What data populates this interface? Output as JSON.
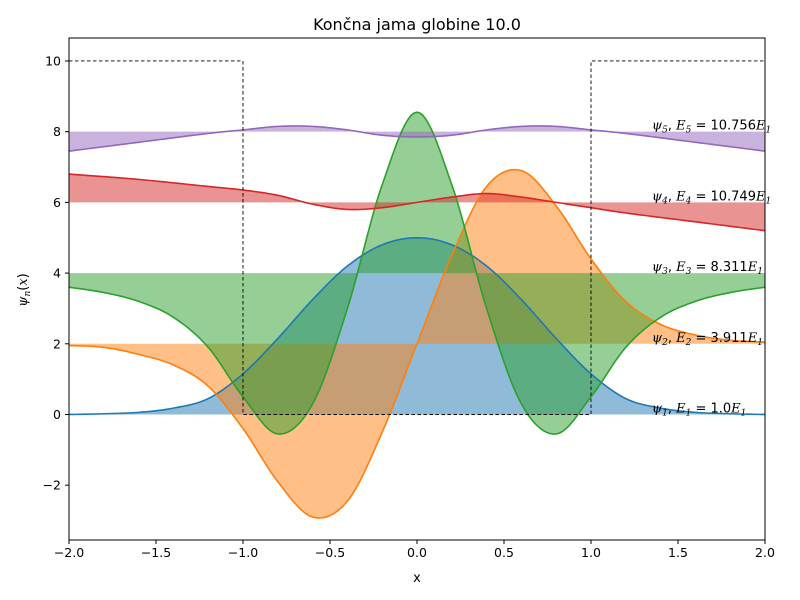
{
  "chart_data": {
    "type": "line",
    "title": "Končna jama globine 10.0",
    "xlabel": "x",
    "ylabel": "ψ_n(x)",
    "xlim": [
      -2.0,
      2.0
    ],
    "ylim": [
      -3.55,
      10.65
    ],
    "xticks": [
      -2.0,
      -1.5,
      -1.0,
      -0.5,
      0.0,
      0.5,
      1.0,
      1.5,
      2.0
    ],
    "xtick_labels": [
      "−2.0",
      "−1.5",
      "−1.0",
      "−0.5",
      "0.0",
      "0.5",
      "1.0",
      "1.5",
      "2.0"
    ],
    "yticks": [
      -2,
      0,
      2,
      4,
      6,
      8,
      10
    ],
    "ytick_labels": [
      "−2",
      "0",
      "2",
      "4",
      "6",
      "8",
      "10"
    ],
    "grid": false,
    "legend": "none",
    "well": {
      "depth": 10.0,
      "x_left": -1.0,
      "x_right": 1.0,
      "style": "dashed",
      "color": "#000000"
    },
    "series": [
      {
        "baseline": 0,
        "color": "#1f77b4",
        "annotation": {
          "psi": "ψ",
          "sub": "1",
          "mid": ", ",
          "E": "E",
          "esub": "1",
          "eq": " = 1.0",
          "E2": "E",
          "e2sub": "1"
        },
        "points": [
          [
            -2.0,
            0.0
          ],
          [
            -1.8,
            0.02
          ],
          [
            -1.6,
            0.06
          ],
          [
            -1.4,
            0.18
          ],
          [
            -1.2,
            0.45
          ],
          [
            -1.0,
            1.15
          ],
          [
            -0.8,
            2.15
          ],
          [
            -0.6,
            3.25
          ],
          [
            -0.4,
            4.2
          ],
          [
            -0.2,
            4.8
          ],
          [
            0.0,
            5.0
          ],
          [
            0.2,
            4.8
          ],
          [
            0.4,
            4.2
          ],
          [
            0.6,
            3.25
          ],
          [
            0.8,
            2.15
          ],
          [
            1.0,
            1.15
          ],
          [
            1.2,
            0.45
          ],
          [
            1.4,
            0.18
          ],
          [
            1.6,
            0.06
          ],
          [
            1.8,
            0.02
          ],
          [
            2.0,
            0.0
          ]
        ]
      },
      {
        "baseline": 2,
        "color": "#ff7f0e",
        "annotation": {
          "psi": "ψ",
          "sub": "2",
          "mid": ", ",
          "E": "E",
          "esub": "2",
          "eq": " = 3.911",
          "E2": "E",
          "e2sub": "1"
        },
        "points": [
          [
            -2.0,
            1.95
          ],
          [
            -1.8,
            1.9
          ],
          [
            -1.6,
            1.7
          ],
          [
            -1.4,
            1.4
          ],
          [
            -1.2,
            0.8
          ],
          [
            -1.0,
            -0.4
          ],
          [
            -0.8,
            -1.9
          ],
          [
            -0.6,
            -2.9
          ],
          [
            -0.4,
            -2.45
          ],
          [
            -0.2,
            -0.5
          ],
          [
            0.0,
            2.0
          ],
          [
            0.2,
            4.5
          ],
          [
            0.4,
            6.45
          ],
          [
            0.6,
            6.9
          ],
          [
            0.8,
            5.9
          ],
          [
            1.0,
            4.4
          ],
          [
            1.2,
            3.2
          ],
          [
            1.4,
            2.55
          ],
          [
            1.6,
            2.25
          ],
          [
            1.8,
            2.1
          ],
          [
            2.0,
            2.05
          ]
        ]
      },
      {
        "baseline": 4,
        "color": "#2ca02c",
        "annotation": {
          "psi": "ψ",
          "sub": "3",
          "mid": ", ",
          "E": "E",
          "esub": "3",
          "eq": " = 8.311",
          "E2": "E",
          "e2sub": "1"
        },
        "points": [
          [
            -2.0,
            3.6
          ],
          [
            -1.8,
            3.45
          ],
          [
            -1.6,
            3.2
          ],
          [
            -1.4,
            2.75
          ],
          [
            -1.2,
            1.9
          ],
          [
            -1.0,
            0.5
          ],
          [
            -0.8,
            -0.55
          ],
          [
            -0.6,
            0.3
          ],
          [
            -0.4,
            3.0
          ],
          [
            -0.2,
            6.5
          ],
          [
            0.0,
            8.55
          ],
          [
            0.2,
            6.5
          ],
          [
            0.4,
            3.0
          ],
          [
            0.6,
            0.3
          ],
          [
            0.8,
            -0.55
          ],
          [
            1.0,
            0.5
          ],
          [
            1.2,
            1.9
          ],
          [
            1.4,
            2.75
          ],
          [
            1.6,
            3.2
          ],
          [
            1.8,
            3.45
          ],
          [
            2.0,
            3.6
          ]
        ]
      },
      {
        "baseline": 6,
        "color": "#d62728",
        "annotation": {
          "psi": "ψ",
          "sub": "4",
          "mid": ", ",
          "E": "E",
          "esub": "4",
          "eq": " = 10.749",
          "E2": "E",
          "e2sub": "1"
        },
        "points": [
          [
            -2.0,
            6.8
          ],
          [
            -1.6,
            6.65
          ],
          [
            -1.2,
            6.45
          ],
          [
            -1.0,
            6.35
          ],
          [
            -0.8,
            6.2
          ],
          [
            -0.6,
            5.95
          ],
          [
            -0.4,
            5.8
          ],
          [
            -0.2,
            5.85
          ],
          [
            0.0,
            6.0
          ],
          [
            0.2,
            6.15
          ],
          [
            0.4,
            6.25
          ],
          [
            0.6,
            6.15
          ],
          [
            0.8,
            6.0
          ],
          [
            1.0,
            5.85
          ],
          [
            1.2,
            5.7
          ],
          [
            1.6,
            5.45
          ],
          [
            2.0,
            5.2
          ]
        ]
      },
      {
        "baseline": 8,
        "color": "#9467bd",
        "annotation": {
          "psi": "ψ",
          "sub": "5",
          "mid": ", ",
          "E": "E",
          "esub": "5",
          "eq": " = 10.756",
          "E2": "E",
          "e2sub": "1"
        },
        "points": [
          [
            -2.0,
            7.45
          ],
          [
            -1.6,
            7.7
          ],
          [
            -1.2,
            7.95
          ],
          [
            -1.0,
            8.05
          ],
          [
            -0.8,
            8.15
          ],
          [
            -0.6,
            8.15
          ],
          [
            -0.4,
            8.05
          ],
          [
            -0.2,
            7.9
          ],
          [
            0.0,
            7.85
          ],
          [
            0.2,
            7.9
          ],
          [
            0.4,
            8.05
          ],
          [
            0.6,
            8.15
          ],
          [
            0.8,
            8.15
          ],
          [
            1.0,
            8.05
          ],
          [
            1.2,
            7.95
          ],
          [
            1.6,
            7.7
          ],
          [
            2.0,
            7.45
          ]
        ]
      }
    ]
  }
}
